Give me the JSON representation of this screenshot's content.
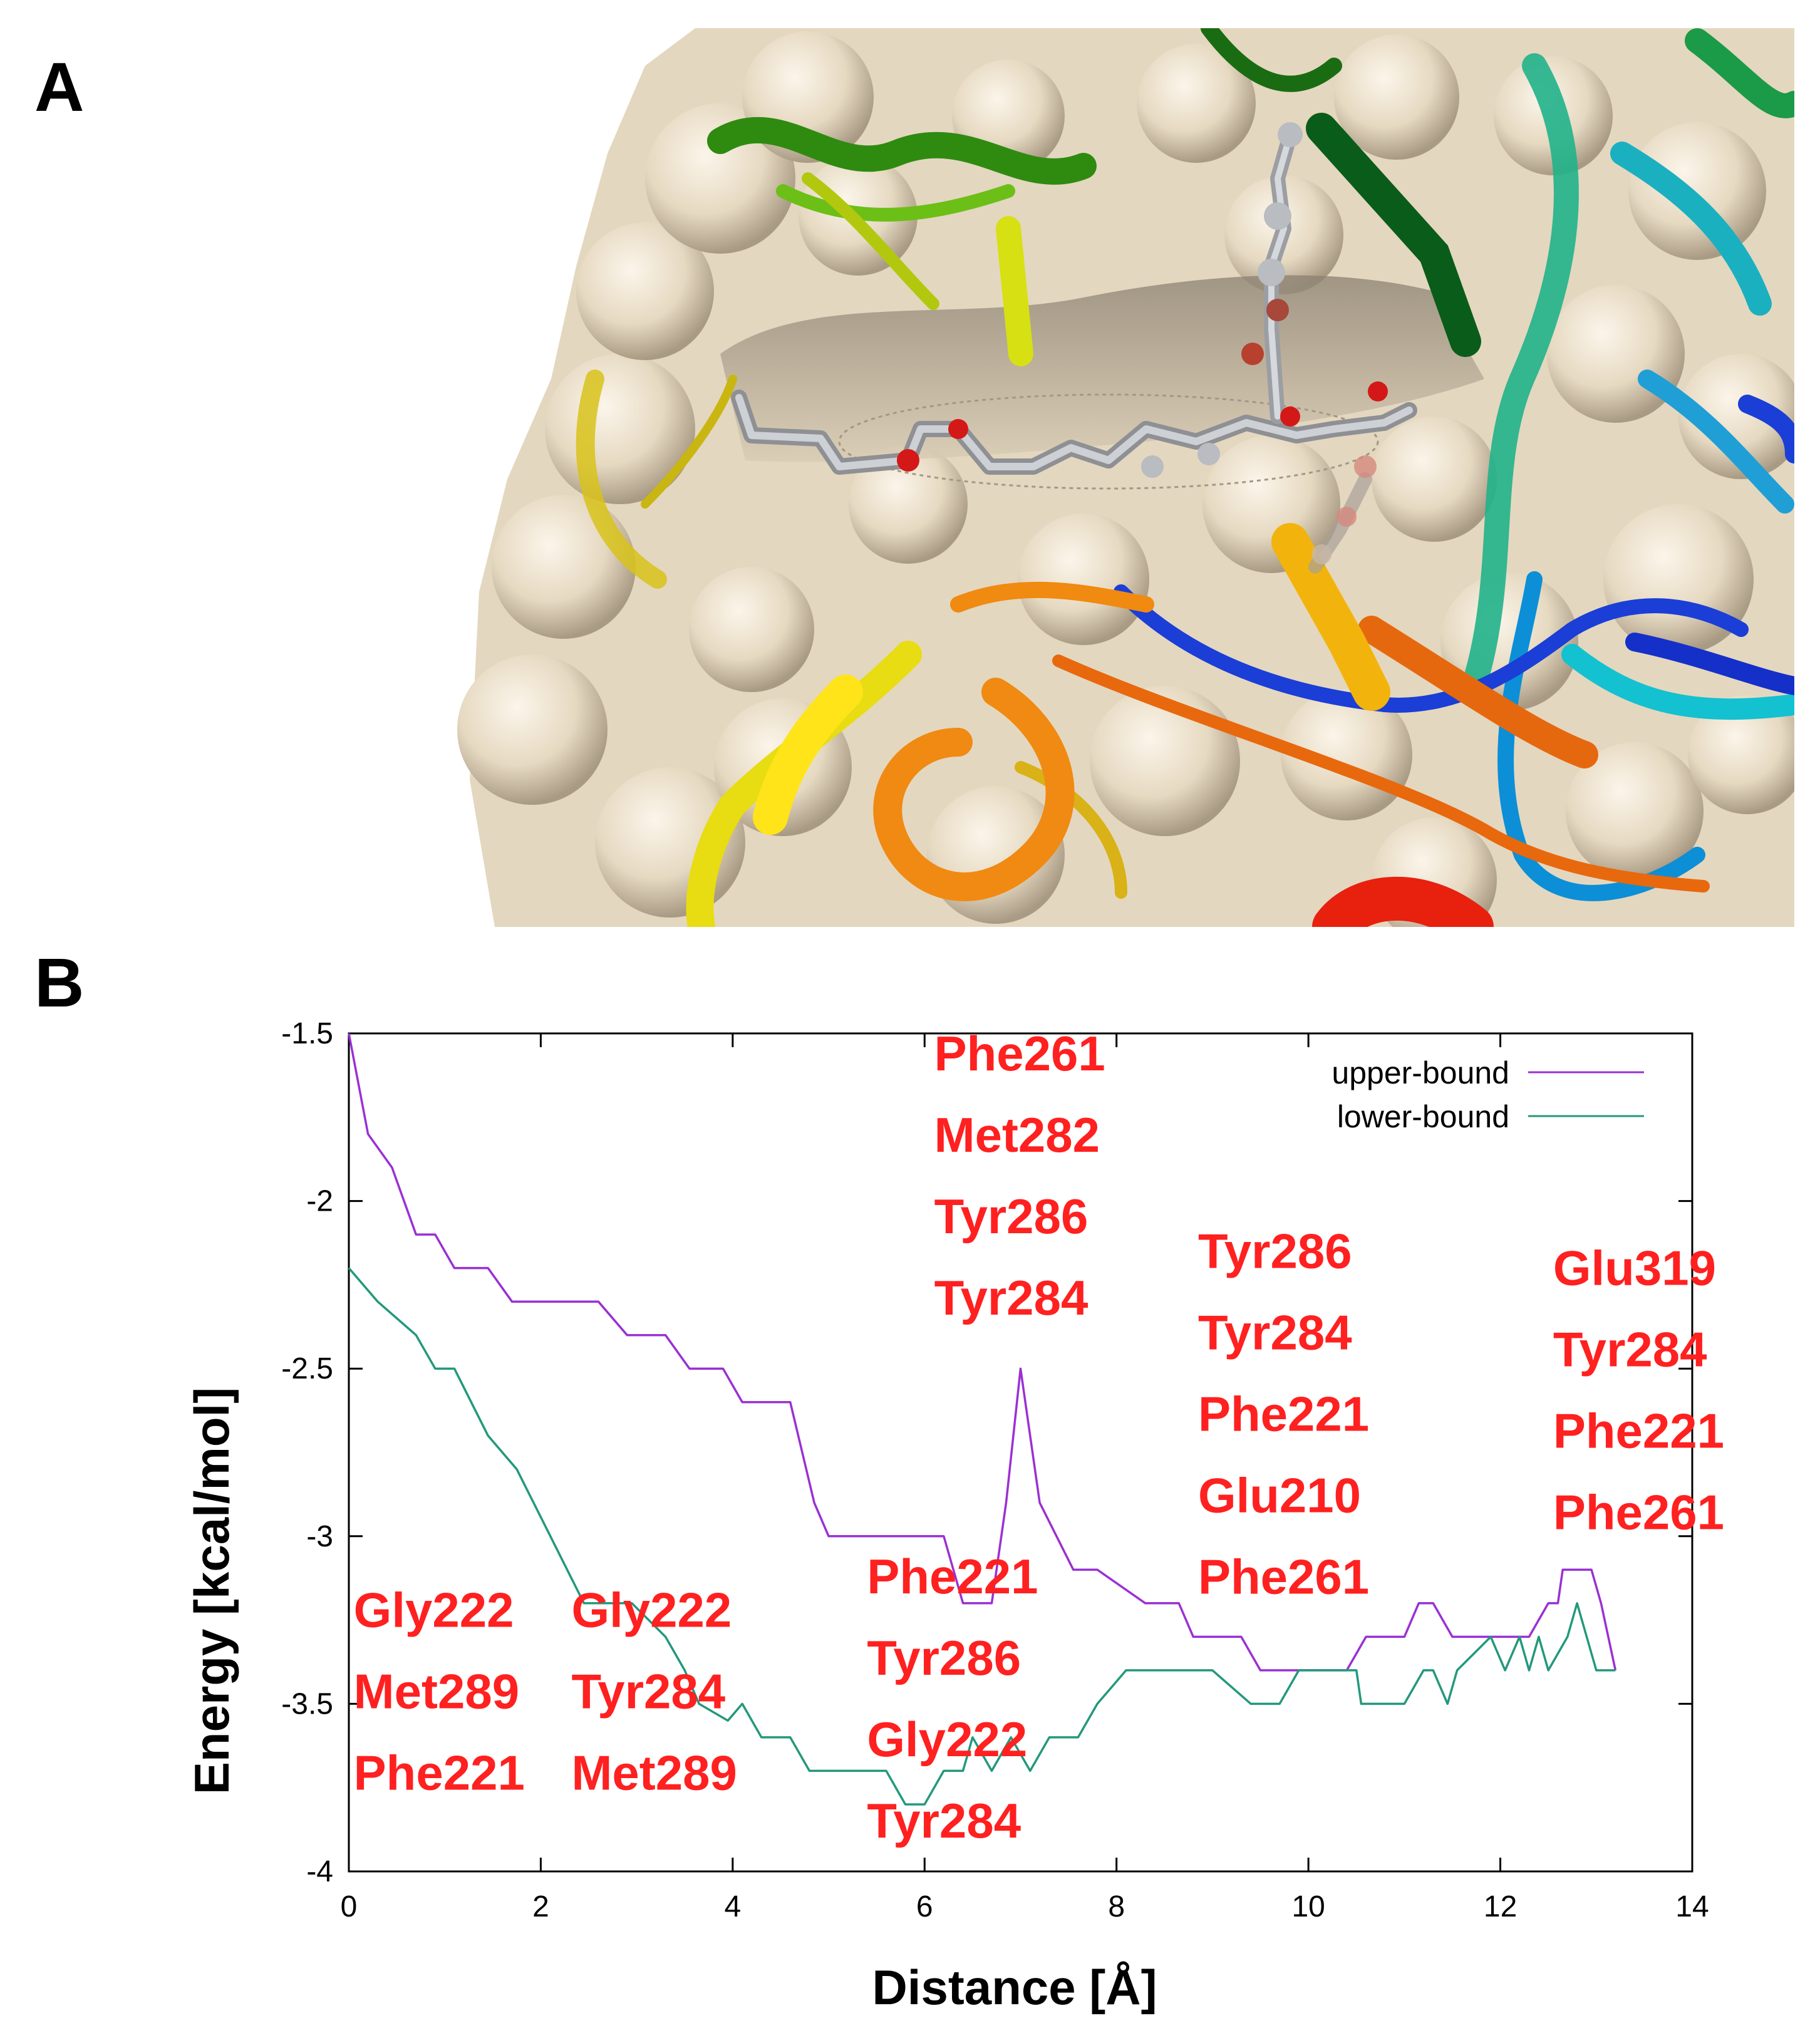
{
  "panels": {
    "a": "A",
    "b": "B"
  },
  "colors": {
    "surface": "#e8dcc6",
    "upper_bound": "#9a30d4",
    "lower_bound": "#23987c",
    "annotation": "#ff2020"
  },
  "chart_data": {
    "type": "line",
    "xlabel": "Distance [Å]",
    "ylabel": "Energy [kcal/mol]",
    "xlim": [
      0,
      14
    ],
    "ylim": [
      -4,
      -1.5
    ],
    "xticks": [
      "0",
      "2",
      "4",
      "6",
      "8",
      "10",
      "12",
      "14"
    ],
    "yticks": [
      "-1.5",
      "-2",
      "-2.5",
      "-3",
      "-3.5",
      "-4"
    ],
    "legend": "top-right",
    "series": [
      {
        "name": "upper-bound",
        "x": [
          0,
          0.2,
          0.45,
          0.7,
          0.9,
          1.1,
          1.45,
          1.7,
          2.1,
          2.6,
          2.9,
          3.3,
          3.55,
          3.9,
          4.1,
          4.6,
          4.85,
          5.0,
          5.4,
          5.8,
          6.2,
          6.4,
          6.7,
          6.85,
          7.0,
          7.2,
          7.55,
          7.8,
          8.3,
          8.65,
          8.8,
          9.0,
          9.3,
          9.5,
          9.8,
          10.3,
          10.4,
          10.6,
          11.0,
          11.15,
          11.3,
          11.5,
          11.9,
          12.1,
          12.3,
          12.5,
          12.6,
          12.65,
          12.8,
          12.95,
          13.05,
          13.2
        ],
        "y": [
          -1.5,
          -1.8,
          -1.9,
          -2.1,
          -2.1,
          -2.2,
          -2.2,
          -2.3,
          -2.3,
          -2.3,
          -2.4,
          -2.4,
          -2.5,
          -2.5,
          -2.6,
          -2.6,
          -2.9,
          -3.0,
          -3.0,
          -3.0,
          -3.0,
          -3.2,
          -3.2,
          -2.9,
          -2.5,
          -2.9,
          -3.1,
          -3.1,
          -3.2,
          -3.2,
          -3.3,
          -3.3,
          -3.3,
          -3.4,
          -3.4,
          -3.4,
          -3.4,
          -3.3,
          -3.3,
          -3.2,
          -3.2,
          -3.3,
          -3.3,
          -3.3,
          -3.3,
          -3.2,
          -3.2,
          -3.1,
          -3.1,
          -3.1,
          -3.2,
          -3.4
        ]
      },
      {
        "name": "lower-bound",
        "x": [
          0,
          0.3,
          0.7,
          0.9,
          1.1,
          1.45,
          1.75,
          2.1,
          2.45,
          2.95,
          3.3,
          3.5,
          3.65,
          3.95,
          4.1,
          4.3,
          4.6,
          4.8,
          5.2,
          5.6,
          5.8,
          6.0,
          6.2,
          6.4,
          6.5,
          6.7,
          6.9,
          7.1,
          7.3,
          7.6,
          7.8,
          8.1,
          8.5,
          9.0,
          9.4,
          9.7,
          9.9,
          10.2,
          10.5,
          10.55,
          11.0,
          11.2,
          11.3,
          11.45,
          11.55,
          11.9,
          12.05,
          12.2,
          12.3,
          12.4,
          12.5,
          12.7,
          12.8,
          13.0,
          13.2
        ],
        "y": [
          -2.2,
          -2.3,
          -2.4,
          -2.5,
          -2.5,
          -2.7,
          -2.8,
          -3.0,
          -3.2,
          -3.2,
          -3.3,
          -3.4,
          -3.5,
          -3.55,
          -3.5,
          -3.6,
          -3.6,
          -3.7,
          -3.7,
          -3.7,
          -3.8,
          -3.8,
          -3.7,
          -3.7,
          -3.6,
          -3.7,
          -3.6,
          -3.7,
          -3.6,
          -3.6,
          -3.5,
          -3.4,
          -3.4,
          -3.4,
          -3.5,
          -3.5,
          -3.4,
          -3.4,
          -3.4,
          -3.5,
          -3.5,
          -3.4,
          -3.4,
          -3.5,
          -3.4,
          -3.3,
          -3.4,
          -3.3,
          -3.4,
          -3.3,
          -3.4,
          -3.3,
          -3.2,
          -3.4,
          -3.4
        ]
      }
    ],
    "annotations": [
      {
        "x": 0.05,
        "y": -3.27,
        "lines": [
          "Gly222",
          "Met289",
          "Phe221"
        ]
      },
      {
        "x": 2.32,
        "y": -3.27,
        "lines": [
          "Gly222",
          "Tyr284",
          "Met289"
        ]
      },
      {
        "x": 5.4,
        "y": -3.17,
        "lines": [
          "Phe221",
          "Tyr286",
          "Gly222",
          "Tyr284"
        ]
      },
      {
        "x": 6.1,
        "y": -1.61,
        "lines": [
          "Phe261",
          "Met282",
          "Tyr286",
          "Tyr284"
        ]
      },
      {
        "x": 8.85,
        "y": -2.2,
        "lines": [
          "Tyr286",
          "Tyr284",
          "Phe221",
          "Glu210",
          "Phe261"
        ]
      },
      {
        "x": 12.55,
        "y": -2.25,
        "lines": [
          "Glu319",
          "Tyr284",
          "Phe221",
          "Phe261"
        ]
      }
    ]
  }
}
